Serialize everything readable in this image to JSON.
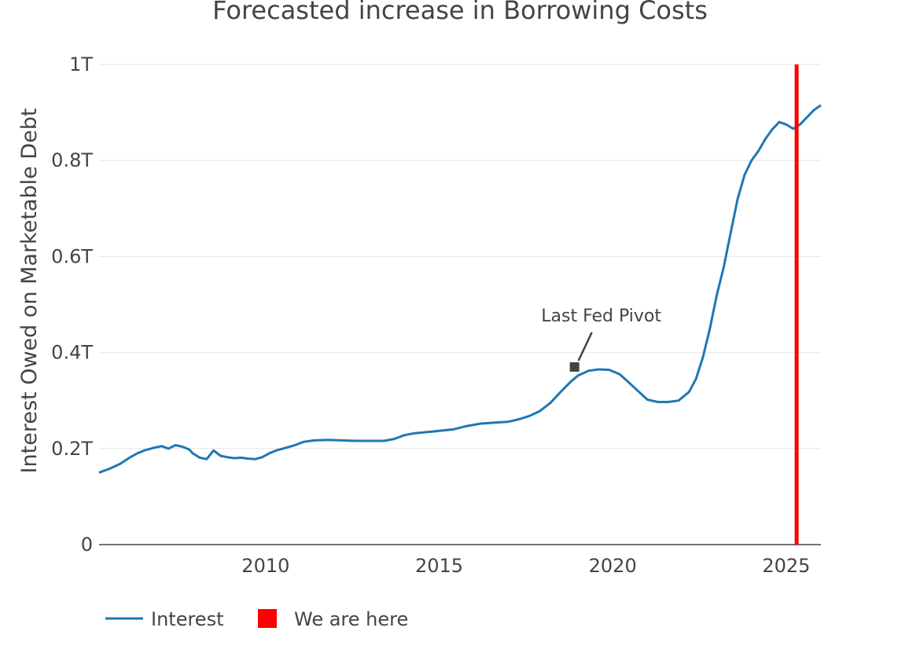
{
  "chart_data": {
    "type": "line",
    "title": "Forecasted increase in Borrowing Costs",
    "ylabel": "Interest Owed on Marketable Debt",
    "xlabel": "",
    "xlim": [
      2005.2,
      2026.0
    ],
    "ylim": [
      0,
      1000000000000
    ],
    "x_ticks": [
      2010,
      2015,
      2020,
      2025
    ],
    "x_tick_labels": [
      "2010",
      "2015",
      "2020",
      "2025"
    ],
    "y_ticks": [
      0,
      200000000000,
      400000000000,
      600000000000,
      800000000000,
      1000000000000
    ],
    "y_tick_labels": [
      "0",
      "0.2T",
      "0.4T",
      "0.6T",
      "0.8T",
      "1T"
    ],
    "grid": true,
    "legend_position": "bottom-left",
    "series": [
      {
        "name": "Interest",
        "color": "#1f77b4",
        "x": [
          2005.2,
          2005.5,
          2005.8,
          2006.1,
          2006.3,
          2006.5,
          2006.8,
          2007.0,
          2007.2,
          2007.4,
          2007.6,
          2007.8,
          2007.9,
          2008.1,
          2008.3,
          2008.5,
          2008.7,
          2008.9,
          2009.1,
          2009.3,
          2009.5,
          2009.7,
          2009.9,
          2010.1,
          2010.3,
          2010.5,
          2010.8,
          2011.1,
          2011.4,
          2011.8,
          2012.2,
          2012.6,
          2013.0,
          2013.4,
          2013.7,
          2014.0,
          2014.3,
          2014.6,
          2015.0,
          2015.4,
          2015.8,
          2016.2,
          2016.6,
          2017.0,
          2017.3,
          2017.6,
          2017.9,
          2018.2,
          2018.5,
          2018.8,
          2019.0,
          2019.3,
          2019.6,
          2019.9,
          2020.2,
          2020.4,
          2020.7,
          2021.0,
          2021.3,
          2021.6,
          2021.9,
          2022.2,
          2022.4,
          2022.6,
          2022.8,
          2023.0,
          2023.2,
          2023.4,
          2023.6,
          2023.8,
          2024.0,
          2024.2,
          2024.4,
          2024.6,
          2024.8,
          2025.0,
          2025.2,
          2025.4,
          2025.6,
          2025.8,
          2026.0
        ],
        "values": [
          150000000000,
          158000000000,
          168000000000,
          182000000000,
          190000000000,
          196000000000,
          202000000000,
          205000000000,
          200000000000,
          207000000000,
          204000000000,
          198000000000,
          190000000000,
          181000000000,
          178000000000,
          196000000000,
          185000000000,
          182000000000,
          180000000000,
          181000000000,
          179000000000,
          178000000000,
          182000000000,
          190000000000,
          196000000000,
          200000000000,
          206000000000,
          214000000000,
          217000000000,
          218000000000,
          217000000000,
          216000000000,
          216000000000,
          216000000000,
          220000000000,
          228000000000,
          232000000000,
          234000000000,
          237000000000,
          240000000000,
          247000000000,
          252000000000,
          254000000000,
          256000000000,
          261000000000,
          268000000000,
          278000000000,
          295000000000,
          318000000000,
          340000000000,
          352000000000,
          362000000000,
          365000000000,
          364000000000,
          355000000000,
          342000000000,
          322000000000,
          302000000000,
          297000000000,
          297000000000,
          300000000000,
          318000000000,
          345000000000,
          390000000000,
          450000000000,
          520000000000,
          578000000000,
          650000000000,
          720000000000,
          770000000000,
          800000000000,
          820000000000,
          845000000000,
          865000000000,
          880000000000,
          875000000000,
          866000000000,
          875000000000,
          890000000000,
          905000000000,
          915000000000
        ]
      },
      {
        "name": "We are here",
        "color": "#ff0000",
        "x_value": 2025.3
      }
    ],
    "annotations": [
      {
        "text": "Last Fed Pivot",
        "x": 2018.9,
        "y": 370000000000
      }
    ]
  }
}
